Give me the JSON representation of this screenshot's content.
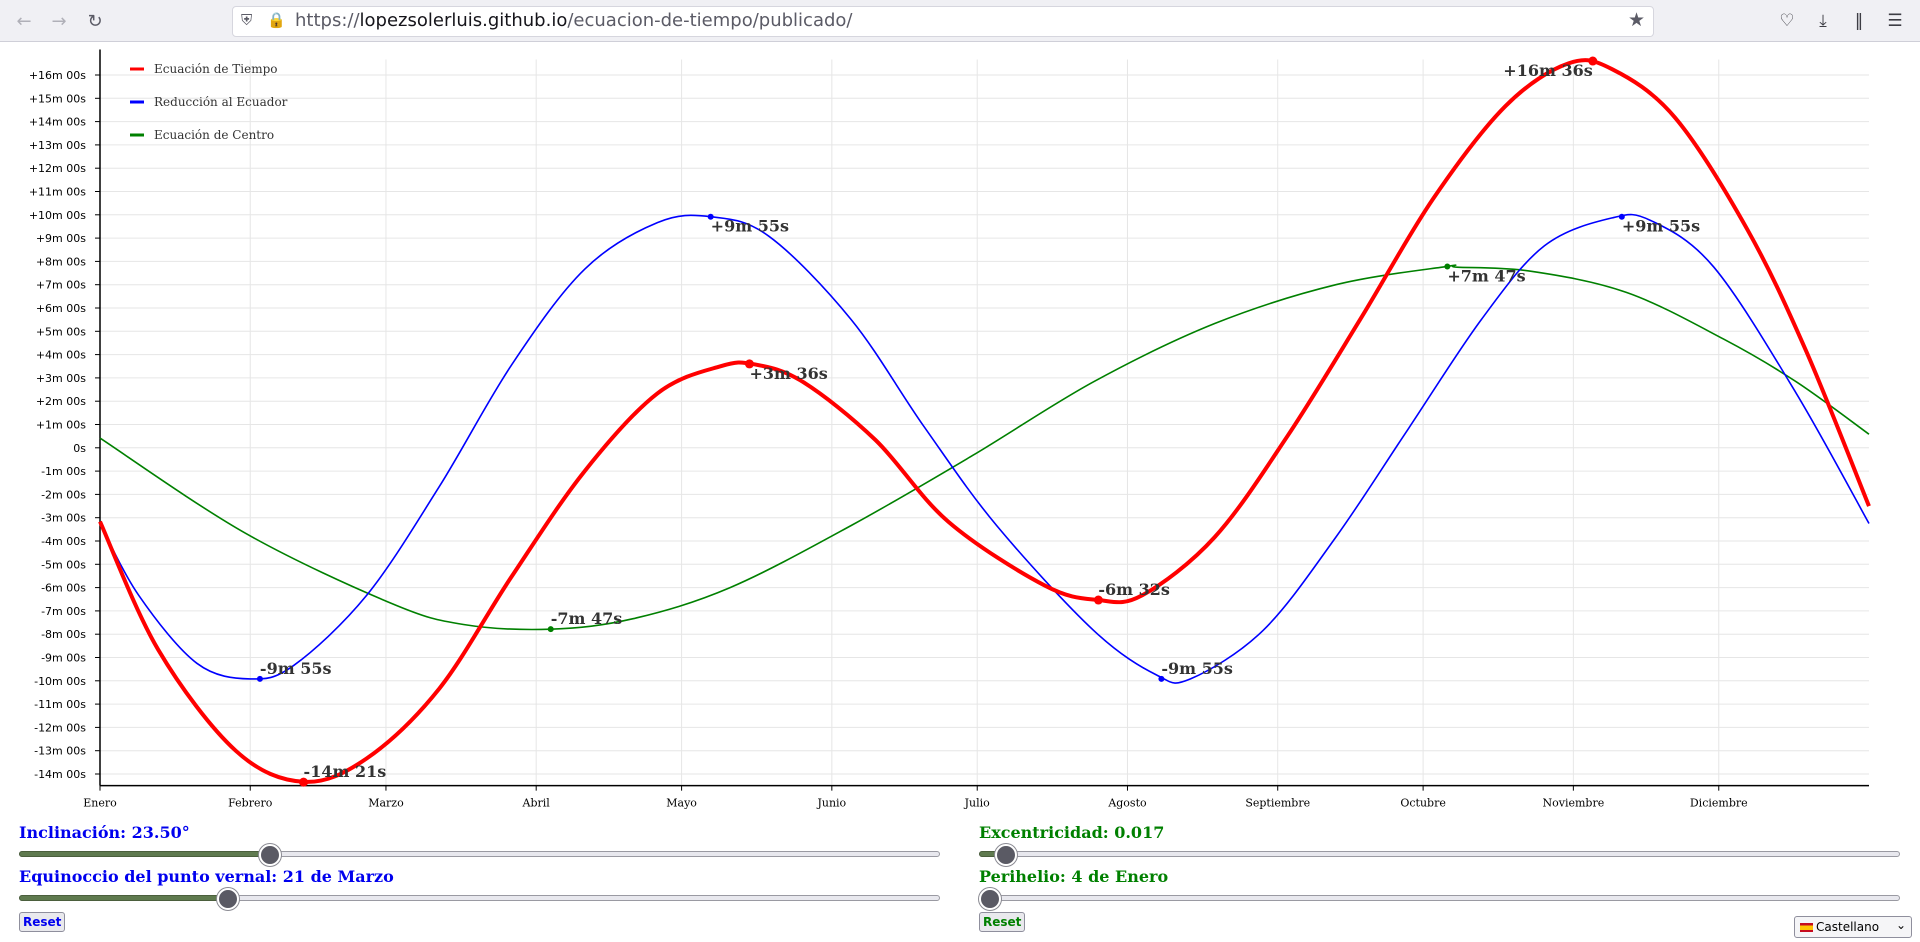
{
  "browser": {
    "url_scheme": "https://",
    "url_host": "lopezsolerluis.github.io",
    "url_path": "/ecuacion-de-tiempo/publicado/",
    "icons": [
      "back-arrow-icon",
      "forward-arrow-icon",
      "reload-icon",
      "shield-icon",
      "lock-icon",
      "bookmark-star-icon",
      "pocket-icon",
      "download-icon",
      "library-icon",
      "menu-icon"
    ]
  },
  "chart_data": {
    "type": "line",
    "x_categories": [
      "Enero",
      "Febrero",
      "Marzo",
      "Abril",
      "Mayo",
      "Junio",
      "Julio",
      "Agosto",
      "Septiembre",
      "Octubre",
      "Noviembre",
      "Diciembre"
    ],
    "x_domain_days": [
      0,
      365
    ],
    "ylim_seconds": [
      -870,
      1000
    ],
    "y_tick_labels": [
      "+16m 00s",
      "+15m 00s",
      "+14m 00s",
      "+13m 00s",
      "+12m 00s",
      "+11m 00s",
      "+10m 00s",
      "+9m 00s",
      "+8m 00s",
      "+7m 00s",
      "+6m 00s",
      "+5m 00s",
      "+4m 00s",
      "+3m 00s",
      "+2m 00s",
      "+1m 00s",
      "0s",
      "-1m 00s",
      "-2m 00s",
      "-3m 00s",
      "-4m 00s",
      "-5m 00s",
      "-6m 00s",
      "-7m 00s",
      "-8m 00s",
      "-9m 00s",
      "-10m 00s",
      "-11m 00s",
      "-12m 00s",
      "-13m 00s",
      "-14m 00s"
    ],
    "grid": true,
    "legend_position": "top-left",
    "series": [
      {
        "name": "Ecuación de Tiempo",
        "color": "#ff0000",
        "width": 4,
        "points": [
          [
            0,
            -190
          ],
          [
            12,
            -520
          ],
          [
            28,
            -780
          ],
          [
            42,
            -860
          ],
          [
            55,
            -800
          ],
          [
            70,
            -620
          ],
          [
            85,
            -330
          ],
          [
            100,
            -60
          ],
          [
            115,
            140
          ],
          [
            128,
            210
          ],
          [
            135,
            215
          ],
          [
            145,
            170
          ],
          [
            160,
            20
          ],
          [
            175,
            -190
          ],
          [
            195,
            -355
          ],
          [
            206,
            -392
          ],
          [
            215,
            -380
          ],
          [
            230,
            -230
          ],
          [
            245,
            30
          ],
          [
            260,
            330
          ],
          [
            275,
            640
          ],
          [
            290,
            880
          ],
          [
            303,
            990
          ],
          [
            312,
            975
          ],
          [
            325,
            850
          ],
          [
            340,
            560
          ],
          [
            352,
            250
          ],
          [
            365,
            -150
          ]
        ]
      },
      {
        "name": "Reducción al Ecuador",
        "color": "#0000ff",
        "width": 1.6,
        "points": [
          [
            0,
            -195
          ],
          [
            8,
            -380
          ],
          [
            20,
            -555
          ],
          [
            31,
            -595
          ],
          [
            40,
            -560
          ],
          [
            55,
            -380
          ],
          [
            70,
            -100
          ],
          [
            85,
            215
          ],
          [
            100,
            460
          ],
          [
            115,
            580
          ],
          [
            126,
            595
          ],
          [
            138,
            545
          ],
          [
            155,
            330
          ],
          [
            170,
            55
          ],
          [
            185,
            -200
          ],
          [
            205,
            -470
          ],
          [
            218,
            -585
          ],
          [
            225,
            -595
          ],
          [
            240,
            -470
          ],
          [
            255,
            -230
          ],
          [
            270,
            50
          ],
          [
            285,
            330
          ],
          [
            298,
            520
          ],
          [
            312,
            592
          ],
          [
            320,
            585
          ],
          [
            333,
            465
          ],
          [
            350,
            140
          ],
          [
            365,
            -195
          ]
        ]
      },
      {
        "name": "Ecuación de Centro",
        "color": "#008000",
        "width": 1.6,
        "points": [
          [
            0,
            25
          ],
          [
            30,
            -220
          ],
          [
            60,
            -400
          ],
          [
            75,
            -455
          ],
          [
            93,
            -467
          ],
          [
            110,
            -440
          ],
          [
            130,
            -360
          ],
          [
            155,
            -200
          ],
          [
            180,
            -20
          ],
          [
            205,
            170
          ],
          [
            230,
            320
          ],
          [
            255,
            420
          ],
          [
            280,
            465
          ],
          [
            278,
            467
          ],
          [
            295,
            455
          ],
          [
            315,
            400
          ],
          [
            335,
            280
          ],
          [
            350,
            170
          ],
          [
            365,
            35
          ]
        ]
      }
    ],
    "markers": [
      {
        "series": "Ecuación de Tiempo",
        "x": 42,
        "y": -861,
        "label": "-14m 21s"
      },
      {
        "series": "Ecuación de Tiempo",
        "x": 134,
        "y": 216,
        "label": "+3m 36s"
      },
      {
        "series": "Ecuación de Tiempo",
        "x": 206,
        "y": -392,
        "label": "-6m 32s"
      },
      {
        "series": "Ecuación de Tiempo",
        "x": 308,
        "y": 996,
        "label": "+16m 36s"
      },
      {
        "series": "Reducción al Ecuador",
        "x": 33,
        "y": -595,
        "label": "-9m 55s"
      },
      {
        "series": "Reducción al Ecuador",
        "x": 126,
        "y": 595,
        "label": "+9m 55s"
      },
      {
        "series": "Reducción al Ecuador",
        "x": 219,
        "y": -595,
        "label": "-9m 55s"
      },
      {
        "series": "Reducción al Ecuador",
        "x": 314,
        "y": 595,
        "label": "+9m 55s"
      },
      {
        "series": "Ecuación de Centro",
        "x": 93,
        "y": -467,
        "label": "-7m 47s"
      },
      {
        "series": "Ecuación de Centro",
        "x": 278,
        "y": 467,
        "label": "+7m 47s"
      }
    ]
  },
  "controls": {
    "inclination_label": "Inclinación: 23.50°",
    "inclination_value": 0.27,
    "equinox_label": "Equinoccio del punto vernal: 21 de Marzo",
    "equinox_value": 0.225,
    "eccentricity_label": "Excentricidad: 0.017",
    "eccentricity_value": 0.027,
    "perihelion_label": "Perihelio: 4 de Enero",
    "perihelion_value": 0.01,
    "reset_left": "Reset",
    "reset_right": "Reset",
    "language": "Castellano"
  }
}
